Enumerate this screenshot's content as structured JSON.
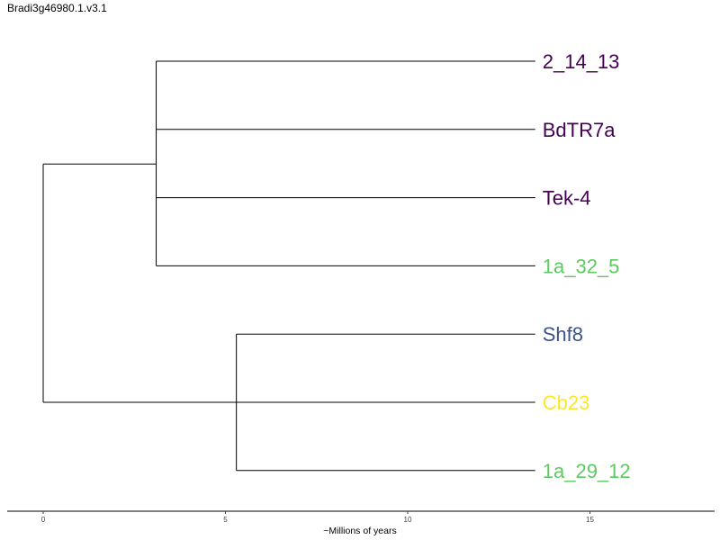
{
  "title": "Bradi3g46980.1.v3.1",
  "colors": {
    "dark_purple": "#440154",
    "blue": "#3b528b",
    "green": "#5ec962",
    "yellow": "#fde725",
    "branch": "#000000"
  },
  "tree": {
    "axis_title": "~Millions of years",
    "x_ticks": [
      "0",
      "5",
      "10",
      "15"
    ],
    "xlim": [
      -1,
      18.5
    ],
    "tips": [
      {
        "label": "2_14_13",
        "color": "#440154"
      },
      {
        "label": "BdTR7a",
        "color": "#440154"
      },
      {
        "label": "Tek-4",
        "color": "#440154"
      },
      {
        "label": "1a_32_5",
        "color": "#5ec962"
      },
      {
        "label": "Shf8",
        "color": "#3b528b"
      },
      {
        "label": "Cb23",
        "color": "#fde725"
      },
      {
        "label": "1a_29_12",
        "color": "#5ec962"
      }
    ],
    "tip_age": 13.5,
    "nodes": {
      "root": 0,
      "clade_a": 3.1,
      "clade_b": 5.3
    }
  }
}
